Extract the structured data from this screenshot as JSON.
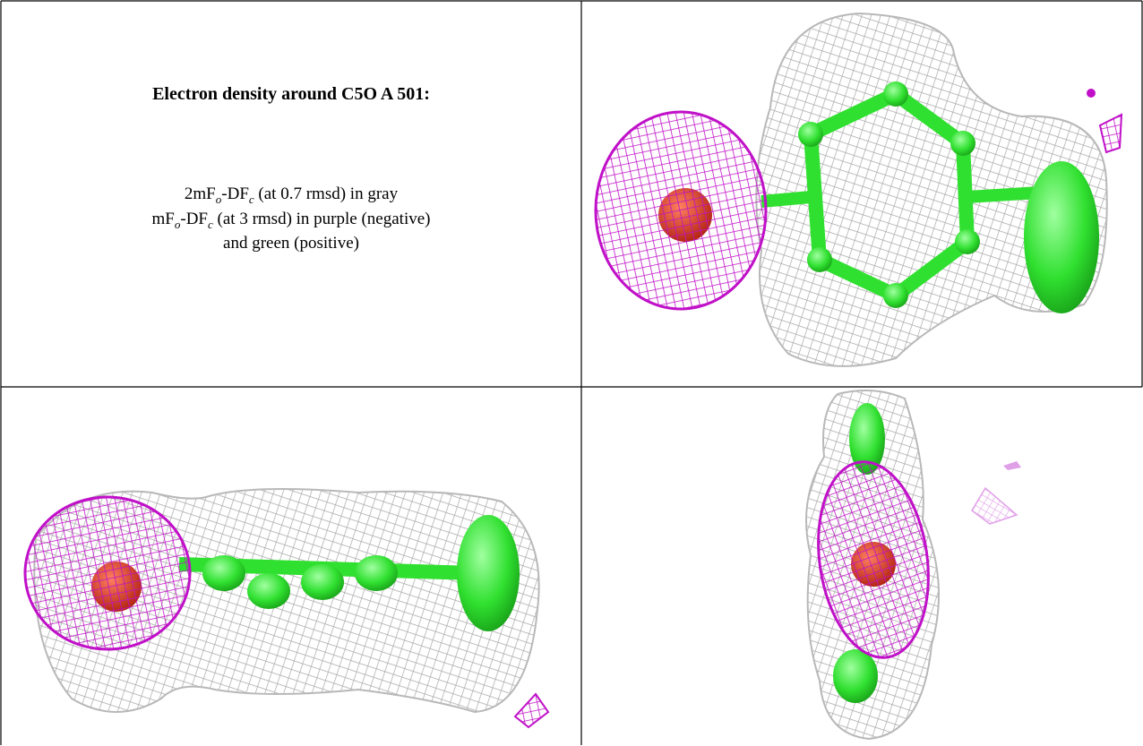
{
  "caption": {
    "title": "Electron density around C5O A 501:",
    "line1": [
      "2mF",
      "o",
      "-DF",
      "c",
      " (at 0.7 rmsd) in gray"
    ],
    "line2": [
      "mF",
      "o",
      "-DF",
      "c",
      " (at 3 rmsd) in purple (negative)"
    ],
    "line3": "and green (positive)"
  }
}
